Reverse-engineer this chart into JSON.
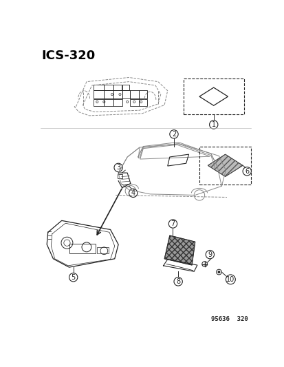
{
  "title": "ICS-320",
  "background_color": "#ffffff",
  "text_color": "#000000",
  "footer_text": "95636  320",
  "fig_width": 4.14,
  "fig_height": 5.33,
  "dpi": 100
}
